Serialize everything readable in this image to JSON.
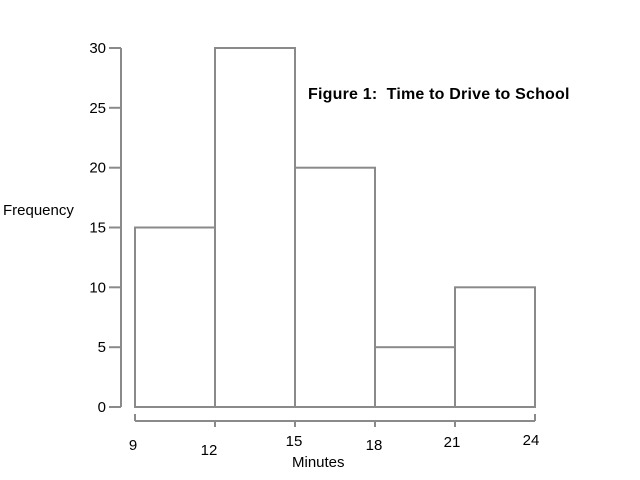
{
  "figure": {
    "title": "Figure 1:  Time to Drive to School",
    "y_axis_title": "Frequency",
    "x_axis_title": "Minutes"
  },
  "chart_data": {
    "type": "bar",
    "subtype": "histogram",
    "title": "Figure 1:  Time to Drive to School",
    "xlabel": "Minutes",
    "ylabel": "Frequency",
    "bin_edges": [
      9,
      12,
      15,
      18,
      21,
      24
    ],
    "bin_width": 3,
    "frequencies": [
      15,
      30,
      20,
      5,
      10
    ],
    "x_ticks": [
      9,
      12,
      15,
      18,
      21,
      24
    ],
    "y_ticks": [
      0,
      5,
      10,
      15,
      20,
      25,
      30
    ],
    "xlim": [
      9,
      24
    ],
    "ylim": [
      0,
      30
    ],
    "grid": false,
    "legend": false,
    "bar_fill": "#ffffff",
    "line_color": "#8a8a8a",
    "text_color": "#000000"
  }
}
